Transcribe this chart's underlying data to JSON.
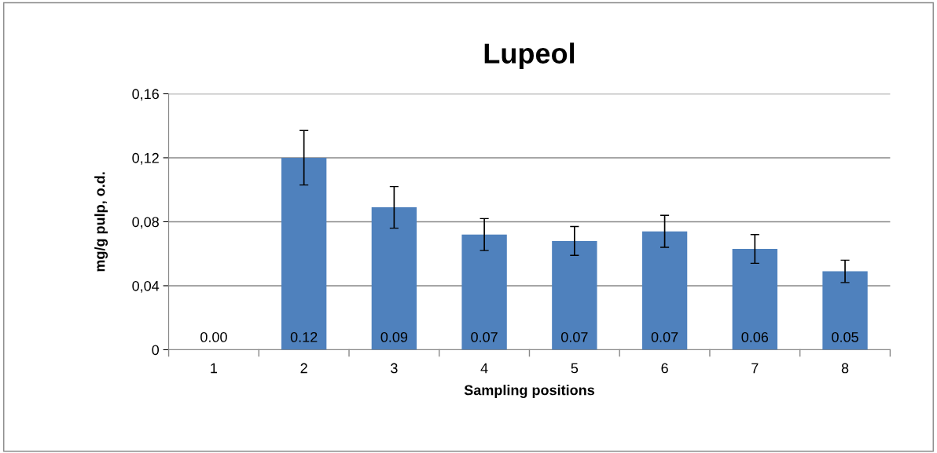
{
  "chart_data": {
    "type": "bar",
    "title": "Lupeol",
    "xlabel": "Sampling positions",
    "ylabel": "mg/g pulp, o.d.",
    "categories": [
      "1",
      "2",
      "3",
      "4",
      "5",
      "6",
      "7",
      "8"
    ],
    "values": [
      0,
      0.12,
      0.089,
      0.072,
      0.068,
      0.074,
      0.063,
      0.049
    ],
    "errors": [
      null,
      0.017,
      0.013,
      0.01,
      0.009,
      0.01,
      0.009,
      0.007
    ],
    "value_labels": [
      "0.00",
      "0.12",
      "0.09",
      "0.07",
      "0.07",
      "0.07",
      "0.06",
      "0.05"
    ],
    "color": "#4f81bd",
    "ylim": [
      0,
      0.16
    ],
    "yticks": [
      0,
      {
        "value": 0.04,
        "label": "0,04"
      },
      {
        "value": 0.08,
        "label": "0,08"
      },
      {
        "value": 0.12,
        "label": "0,12"
      },
      {
        "value": 0.16,
        "label": "0,16"
      }
    ],
    "grid": "y",
    "legend": false
  }
}
